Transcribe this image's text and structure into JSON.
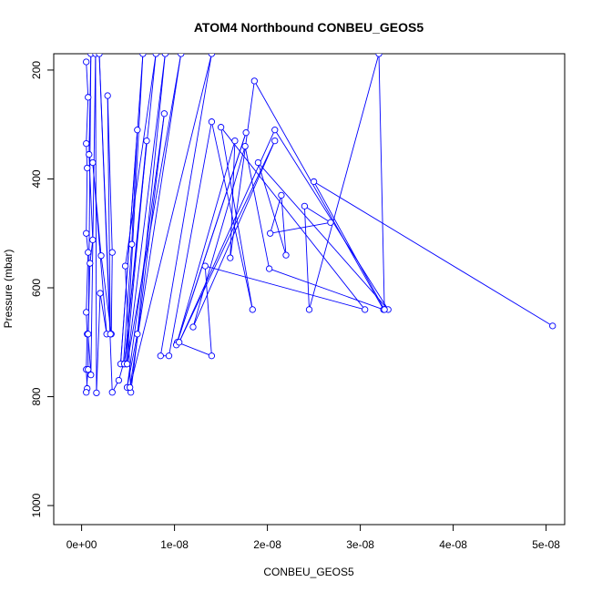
{
  "chart_data": {
    "type": "line",
    "title": "ATOM4 Northbound CONBEU_GEOS5",
    "xlabel": "CONBEU_GEOS5",
    "ylabel": "Pressure (mbar)",
    "xlim": [
      -3e-09,
      5.2e-08
    ],
    "ylim": [
      1035,
      170
    ],
    "y_reversed": true,
    "x_ticks": [
      0,
      1e-08,
      2e-08,
      3e-08,
      4e-08,
      5e-08
    ],
    "x_tick_labels": [
      "0e+00",
      "1e-08",
      "2e-08",
      "3e-08",
      "4e-08",
      "5e-08"
    ],
    "y_ticks": [
      200,
      400,
      600,
      800,
      1000
    ],
    "y_tick_labels": [
      "200",
      "400",
      "600",
      "800",
      "1000"
    ],
    "grid": false,
    "legend": "none",
    "series_color": "#0000ff",
    "series": [
      {
        "marker": "open-circle",
        "points": [
          [
            5e-10,
            185
          ],
          [
            7e-10,
            250
          ],
          [
            5e-10,
            335
          ],
          [
            6e-10,
            380
          ],
          [
            5e-10,
            500
          ],
          [
            7e-10,
            535
          ],
          [
            5e-10,
            645
          ],
          [
            6e-10,
            685
          ],
          [
            5e-10,
            750
          ],
          [
            6e-10,
            785
          ],
          [
            5e-10,
            792
          ],
          [
            7e-10,
            750
          ],
          [
            1e-09,
            170
          ],
          [
            8e-10,
            355
          ],
          [
            1.2e-09,
            512
          ],
          [
            9e-10,
            555
          ],
          [
            7e-10,
            685
          ],
          [
            1e-09,
            760
          ],
          [
            1.5e-09,
            170
          ],
          [
            1.6e-09,
            793
          ],
          [
            2e-09,
            610
          ],
          [
            2.7e-09,
            685
          ],
          [
            1.2e-09,
            370
          ],
          [
            2.1e-09,
            541
          ],
          [
            3.2e-09,
            685
          ],
          [
            3.3e-09,
            535
          ],
          [
            2.8e-09,
            247
          ],
          [
            3.1e-09,
            685
          ],
          [
            1.9e-09,
            170
          ],
          [
            3.3e-09,
            792
          ],
          [
            4e-09,
            770
          ],
          [
            4.5e-09,
            740
          ],
          [
            5.4e-09,
            520
          ],
          [
            6e-09,
            310
          ],
          [
            4.2e-09,
            740
          ],
          [
            6.6e-09,
            170
          ],
          [
            4.8e-09,
            740
          ],
          [
            7e-09,
            330
          ],
          [
            4.6e-09,
            740
          ],
          [
            8e-09,
            170
          ],
          [
            4.7e-09,
            560
          ],
          [
            5.3e-09,
            792
          ],
          [
            8.9e-09,
            280
          ],
          [
            4.9e-09,
            783
          ],
          [
            6e-09,
            685
          ],
          [
            9e-09,
            170
          ],
          [
            4.9e-09,
            740
          ],
          [
            1.07e-08,
            170
          ],
          [
            5.2e-09,
            783
          ],
          [
            1.4e-08,
            170
          ],
          [
            8.5e-09,
            725
          ],
          [
            9.4e-09,
            725
          ],
          [
            1.4e-08,
            295
          ],
          [
            1.84e-08,
            640
          ],
          [
            1.5e-08,
            305
          ],
          [
            3.05e-08,
            640
          ],
          [
            1.33e-08,
            560
          ],
          [
            1.4e-08,
            725
          ],
          [
            1.03e-08,
            700
          ],
          [
            1.77e-08,
            315
          ],
          [
            1.02e-08,
            705
          ],
          [
            1.65e-08,
            330
          ],
          [
            1.6e-08,
            545
          ],
          [
            1.86e-08,
            220
          ],
          [
            3.25e-08,
            640
          ],
          [
            2.02e-08,
            565
          ],
          [
            1.76e-08,
            340
          ],
          [
            1.2e-08,
            672
          ],
          [
            2.08e-08,
            330
          ],
          [
            1.05e-08,
            700
          ],
          [
            2.08e-08,
            310
          ],
          [
            3.3e-08,
            640
          ],
          [
            1.9e-08,
            370
          ],
          [
            2.2e-08,
            540
          ],
          [
            2.15e-08,
            430
          ],
          [
            2.03e-08,
            500
          ],
          [
            2.68e-08,
            480
          ],
          [
            2.4e-08,
            450
          ],
          [
            2.45e-08,
            640
          ],
          [
            3.2e-08,
            170
          ],
          [
            3.26e-08,
            640
          ],
          [
            2.5e-08,
            405
          ],
          [
            5.07e-08,
            670
          ]
        ]
      }
    ]
  }
}
